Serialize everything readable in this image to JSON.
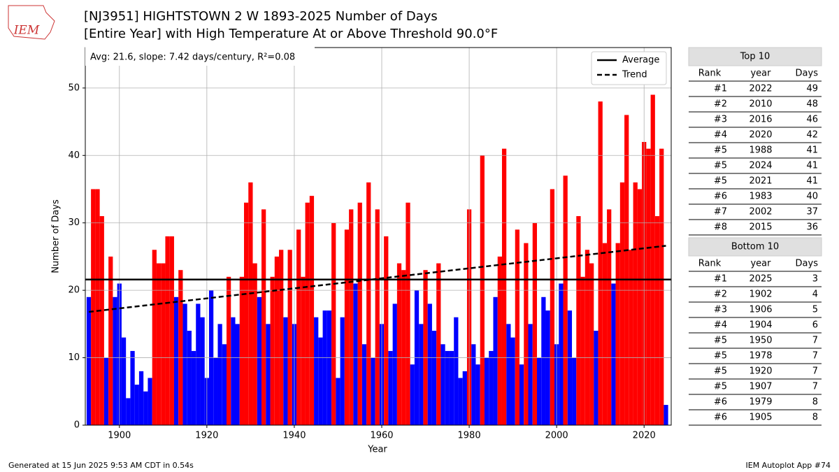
{
  "chart_data": {
    "type": "bar",
    "title": [
      "[NJ3951] HIGHTSTOWN 2 W 1893-2025 Number of Days",
      "[Entire Year] with High Temperature At or Above Threshold 90.0°F"
    ],
    "x_label": "Year",
    "y_label": "Number of Days",
    "annotation": "Avg: 21.6, slope: 7.42 days/century, R²=0.08",
    "logo_text": "IEM",
    "x": [
      1893,
      1894,
      1895,
      1896,
      1897,
      1898,
      1899,
      1900,
      1901,
      1902,
      1903,
      1904,
      1905,
      1906,
      1907,
      1908,
      1909,
      1910,
      1911,
      1912,
      1913,
      1914,
      1915,
      1916,
      1917,
      1918,
      1919,
      1920,
      1921,
      1922,
      1923,
      1924,
      1925,
      1926,
      1927,
      1928,
      1929,
      1930,
      1931,
      1932,
      1933,
      1934,
      1935,
      1936,
      1937,
      1938,
      1939,
      1940,
      1941,
      1942,
      1943,
      1944,
      1945,
      1946,
      1947,
      1948,
      1949,
      1950,
      1951,
      1952,
      1953,
      1954,
      1955,
      1956,
      1957,
      1958,
      1959,
      1960,
      1961,
      1962,
      1963,
      1964,
      1965,
      1966,
      1967,
      1968,
      1969,
      1970,
      1971,
      1972,
      1973,
      1974,
      1975,
      1976,
      1977,
      1978,
      1979,
      1980,
      1981,
      1982,
      1983,
      1984,
      1985,
      1986,
      1987,
      1988,
      1989,
      1990,
      1991,
      1992,
      1993,
      1994,
      1995,
      1996,
      1997,
      1998,
      1999,
      2000,
      2001,
      2002,
      2003,
      2004,
      2005,
      2006,
      2007,
      2008,
      2009,
      2010,
      2011,
      2012,
      2013,
      2014,
      2015,
      2016,
      2017,
      2018,
      2019,
      2020,
      2021,
      2022,
      2023,
      2024,
      2025
    ],
    "values": [
      19,
      35,
      35,
      31,
      10,
      25,
      19,
      21,
      13,
      4,
      11,
      6,
      8,
      5,
      7,
      26,
      24,
      24,
      28,
      28,
      19,
      23,
      18,
      14,
      11,
      18,
      16,
      7,
      20,
      10,
      15,
      12,
      22,
      16,
      15,
      22,
      33,
      36,
      24,
      19,
      32,
      15,
      22,
      25,
      26,
      16,
      26,
      15,
      29,
      22,
      33,
      34,
      16,
      13,
      17,
      17,
      30,
      7,
      16,
      29,
      32,
      21,
      33,
      12,
      36,
      10,
      32,
      15,
      28,
      11,
      18,
      24,
      23,
      33,
      9,
      20,
      15,
      23,
      18,
      14,
      24,
      12,
      11,
      11,
      16,
      7,
      8,
      32,
      12,
      9,
      40,
      10,
      11,
      19,
      25,
      41,
      15,
      13,
      29,
      9,
      27,
      15,
      30,
      10,
      19,
      17,
      35,
      12,
      21,
      37,
      17,
      10,
      31,
      22,
      26,
      24,
      14,
      48,
      27,
      32,
      21,
      27,
      36,
      46,
      26,
      36,
      35,
      42,
      41,
      49,
      31,
      41,
      3
    ],
    "above_color": "#ff0000",
    "below_color": "#0000ff",
    "average": 21.6,
    "average_label": "Average",
    "trend": {
      "x": [
        1893,
        2025
      ],
      "y": [
        16.8,
        26.6
      ]
    },
    "trend_label": "Trend",
    "xlim": [
      1892.2,
      2026.2
    ],
    "ylim": [
      0,
      56
    ],
    "xticks": [
      1900,
      1920,
      1940,
      1960,
      1980,
      2000,
      2020
    ],
    "yticks": [
      0,
      10,
      20,
      30,
      40,
      50
    ],
    "grid": true,
    "legend_position": "upper right"
  },
  "tables": [
    {
      "title": "Top 10",
      "columns": [
        "Rank",
        "year",
        "Days"
      ],
      "rows": [
        [
          "#1",
          2022,
          49
        ],
        [
          "#2",
          2010,
          48
        ],
        [
          "#3",
          2016,
          46
        ],
        [
          "#4",
          2020,
          42
        ],
        [
          "#5",
          1988,
          41
        ],
        [
          "#5",
          2024,
          41
        ],
        [
          "#5",
          2021,
          41
        ],
        [
          "#6",
          1983,
          40
        ],
        [
          "#7",
          2002,
          37
        ],
        [
          "#8",
          2015,
          36
        ]
      ]
    },
    {
      "title": "Bottom 10",
      "columns": [
        "Rank",
        "year",
        "Days"
      ],
      "rows": [
        [
          "#1",
          2025,
          3
        ],
        [
          "#2",
          1902,
          4
        ],
        [
          "#3",
          1906,
          5
        ],
        [
          "#4",
          1904,
          6
        ],
        [
          "#5",
          1950,
          7
        ],
        [
          "#5",
          1978,
          7
        ],
        [
          "#5",
          1920,
          7
        ],
        [
          "#5",
          1907,
          7
        ],
        [
          "#6",
          1979,
          8
        ],
        [
          "#6",
          1905,
          8
        ]
      ]
    }
  ],
  "footer": {
    "left": "Generated at 15 Jun 2025 9:53 AM CDT in 0.54s",
    "right": "IEM Autoplot App #74"
  }
}
